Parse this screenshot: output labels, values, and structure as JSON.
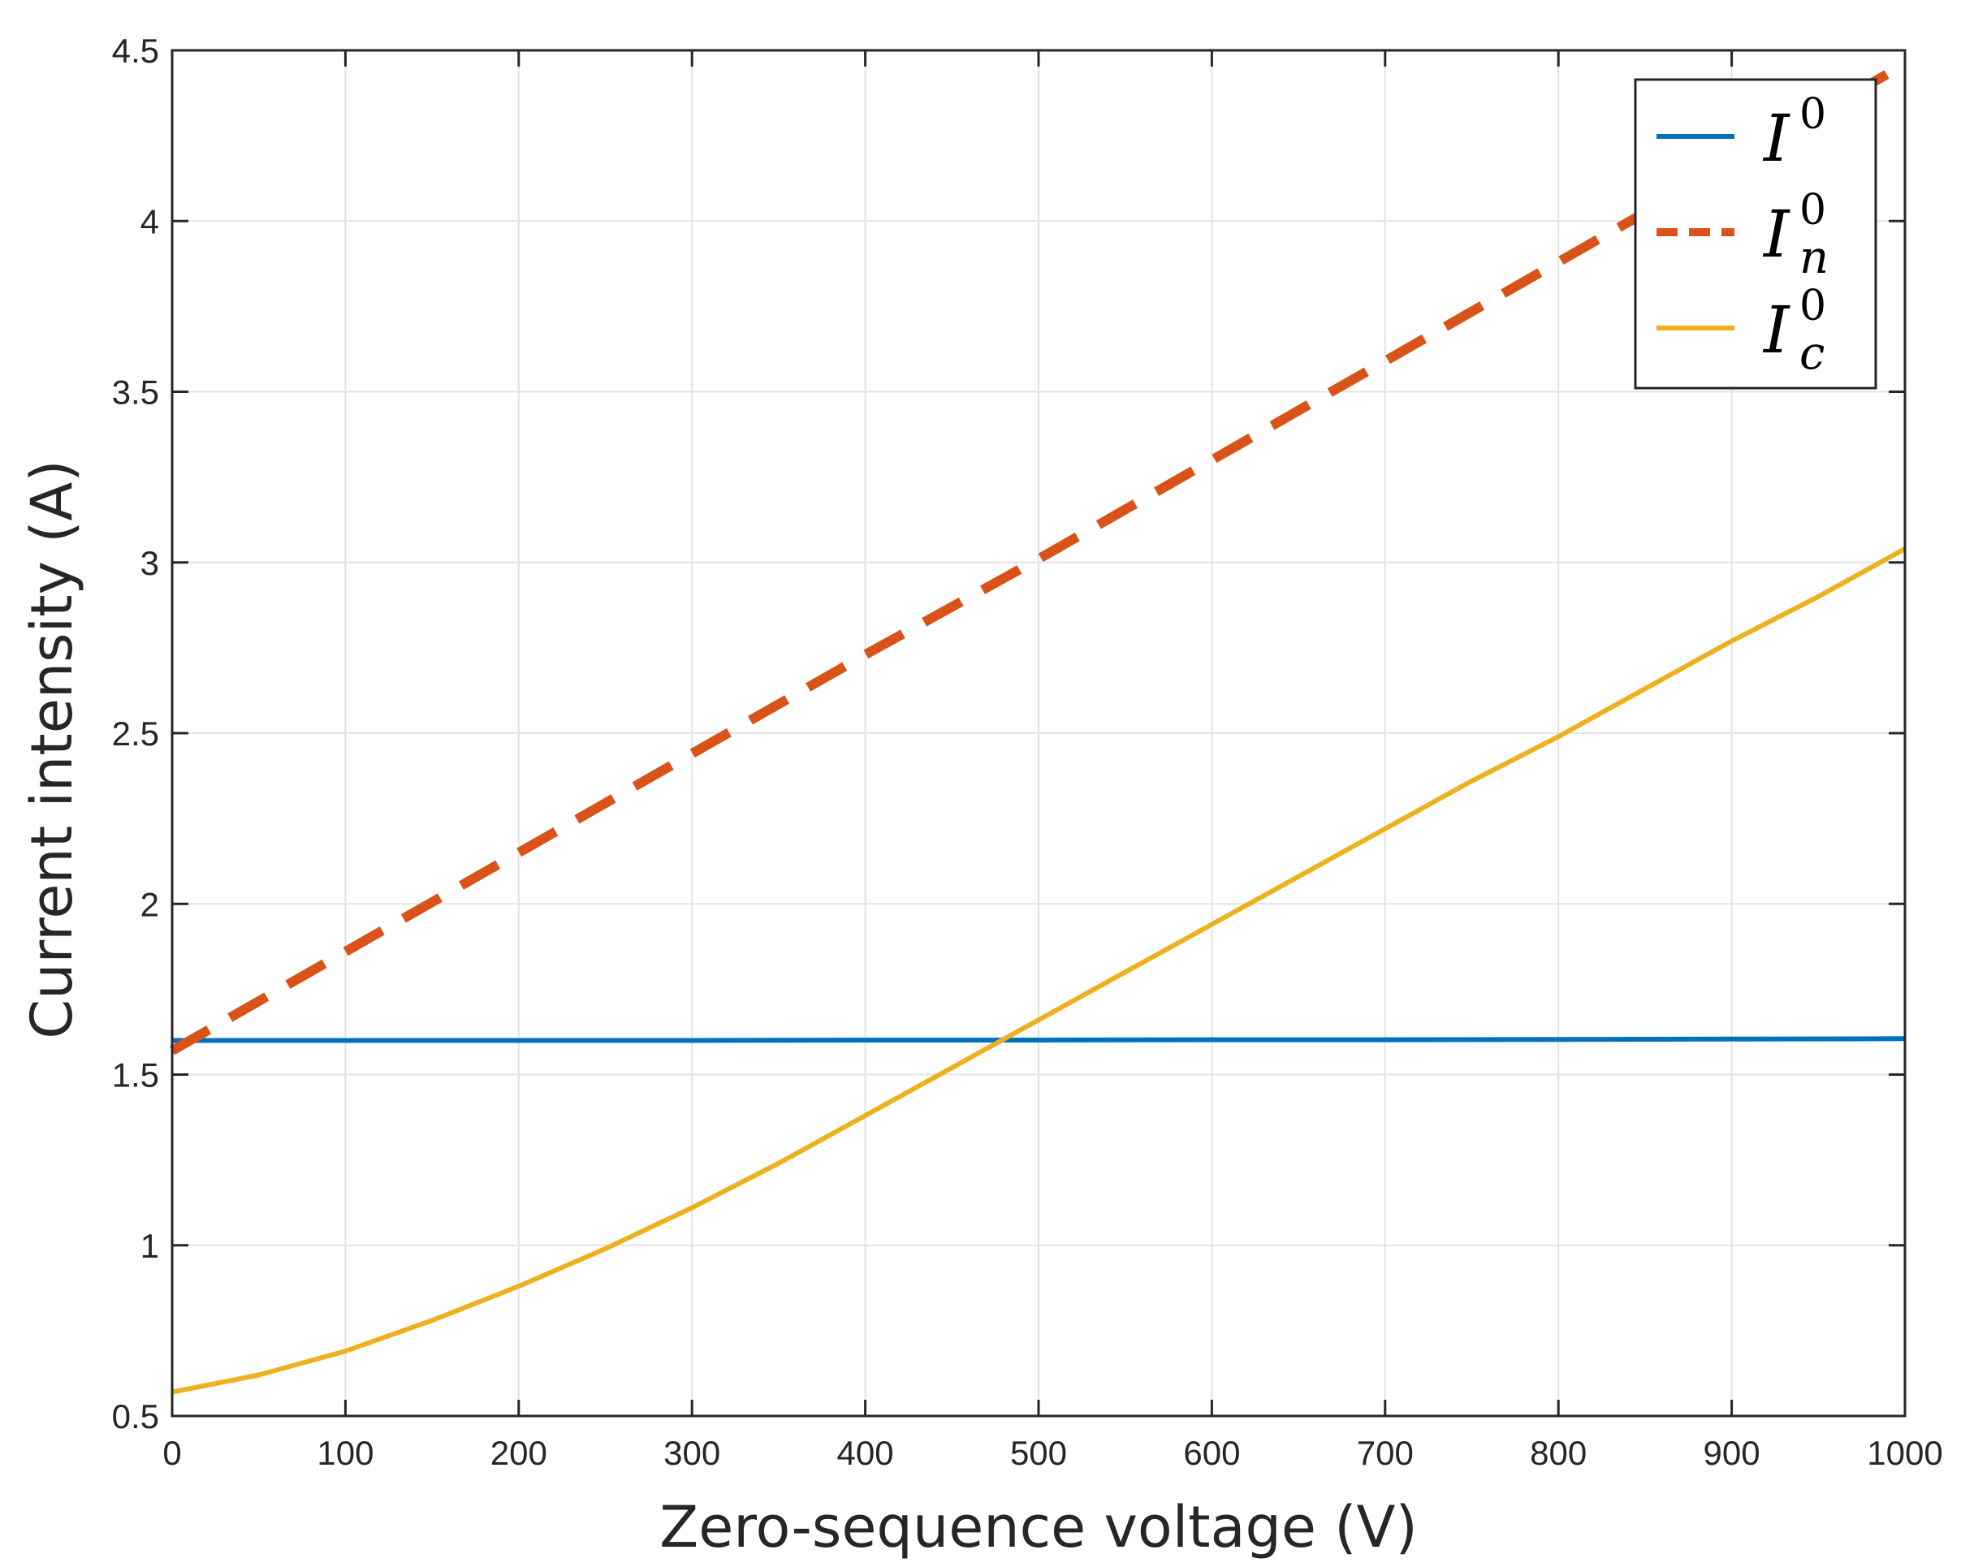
{
  "chart_data": {
    "type": "line",
    "xlabel": "Zero-sequence voltage (V)",
    "ylabel": "Current intensity (A)",
    "xlim": [
      0,
      1000
    ],
    "ylim": [
      0.5,
      4.5
    ],
    "xticks": [
      0,
      100,
      200,
      300,
      400,
      500,
      600,
      700,
      800,
      900,
      1000
    ],
    "yticks": [
      0.5,
      1,
      1.5,
      2,
      2.5,
      3,
      3.5,
      4,
      4.5
    ],
    "xtick_labels": [
      "0",
      "100",
      "200",
      "300",
      "400",
      "500",
      "600",
      "700",
      "800",
      "900",
      "1000"
    ],
    "ytick_labels": [
      "0.5",
      "1",
      "1.5",
      "2",
      "2.5",
      "3",
      "3.5",
      "4",
      "4.5"
    ],
    "grid": true,
    "legend_position": "top-right",
    "series": [
      {
        "name": "I",
        "sup": "0",
        "sub": "",
        "color": "#0072BD",
        "style": "solid",
        "x": [
          0,
          100,
          200,
          300,
          400,
          500,
          600,
          700,
          800,
          900,
          1000
        ],
        "y": [
          1.6,
          1.6,
          1.6,
          1.6,
          1.601,
          1.601,
          1.602,
          1.602,
          1.603,
          1.604,
          1.605
        ]
      },
      {
        "name": "I",
        "sup": "0",
        "sub": "n",
        "color": "#D95319",
        "style": "dashed",
        "x": [
          0,
          100,
          200,
          300,
          400,
          500,
          600,
          700,
          800,
          900,
          1000
        ],
        "y": [
          1.57,
          1.86,
          2.15,
          2.44,
          2.73,
          3.01,
          3.3,
          3.59,
          3.88,
          4.17,
          4.46
        ]
      },
      {
        "name": "I",
        "sup": "0",
        "sub": "c",
        "color": "#EDB120",
        "style": "solid",
        "x": [
          0,
          50,
          100,
          150,
          200,
          250,
          300,
          350,
          400,
          450,
          500,
          550,
          600,
          650,
          700,
          750,
          800,
          850,
          900,
          950,
          1000
        ],
        "y": [
          0.57,
          0.62,
          0.69,
          0.78,
          0.88,
          0.99,
          1.11,
          1.24,
          1.38,
          1.52,
          1.66,
          1.8,
          1.94,
          2.08,
          2.22,
          2.36,
          2.49,
          2.63,
          2.77,
          2.9,
          3.04
        ]
      }
    ]
  }
}
